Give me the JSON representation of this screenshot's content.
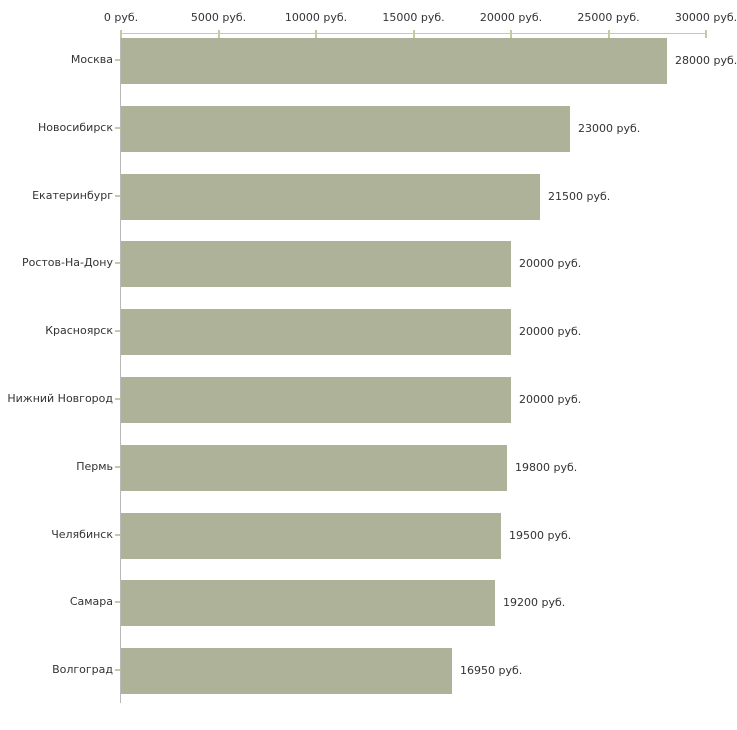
{
  "chart_data": {
    "type": "bar",
    "orientation": "horizontal",
    "title": "",
    "unit": "руб.",
    "categories": [
      "Москва",
      "Новосибирск",
      "Екатеринбург",
      "Ростов-На-Дону",
      "Красноярск",
      "Нижний Новгород",
      "Пермь",
      "Челябинск",
      "Самара",
      "Волгоград"
    ],
    "values": [
      28000,
      23000,
      21500,
      20000,
      20000,
      20000,
      19800,
      19500,
      19200,
      16950
    ],
    "value_labels": [
      "28000 руб.",
      "23000 руб.",
      "21500 руб.",
      "20000 руб.",
      "20000 руб.",
      "20000 руб.",
      "19800 руб.",
      "19500 руб.",
      "19200 руб.",
      "16950 руб."
    ],
    "x_axis": {
      "position": "top",
      "min": 0,
      "max": 30000,
      "tick_interval": 5000,
      "tick_labels": [
        "0 руб.",
        "5000 руб.",
        "10000 руб.",
        "15000 руб.",
        "20000 руб.",
        "25000 руб.",
        "30000 руб."
      ]
    },
    "grid": false,
    "legend": false,
    "colors": {
      "bar": "#aeb298",
      "axis_line_h": "#c4c4c4",
      "axis_line_v": "#b9b9b9",
      "tick_mark": "#c9c9a0",
      "text": "#333333",
      "background": "#ffffff"
    }
  }
}
